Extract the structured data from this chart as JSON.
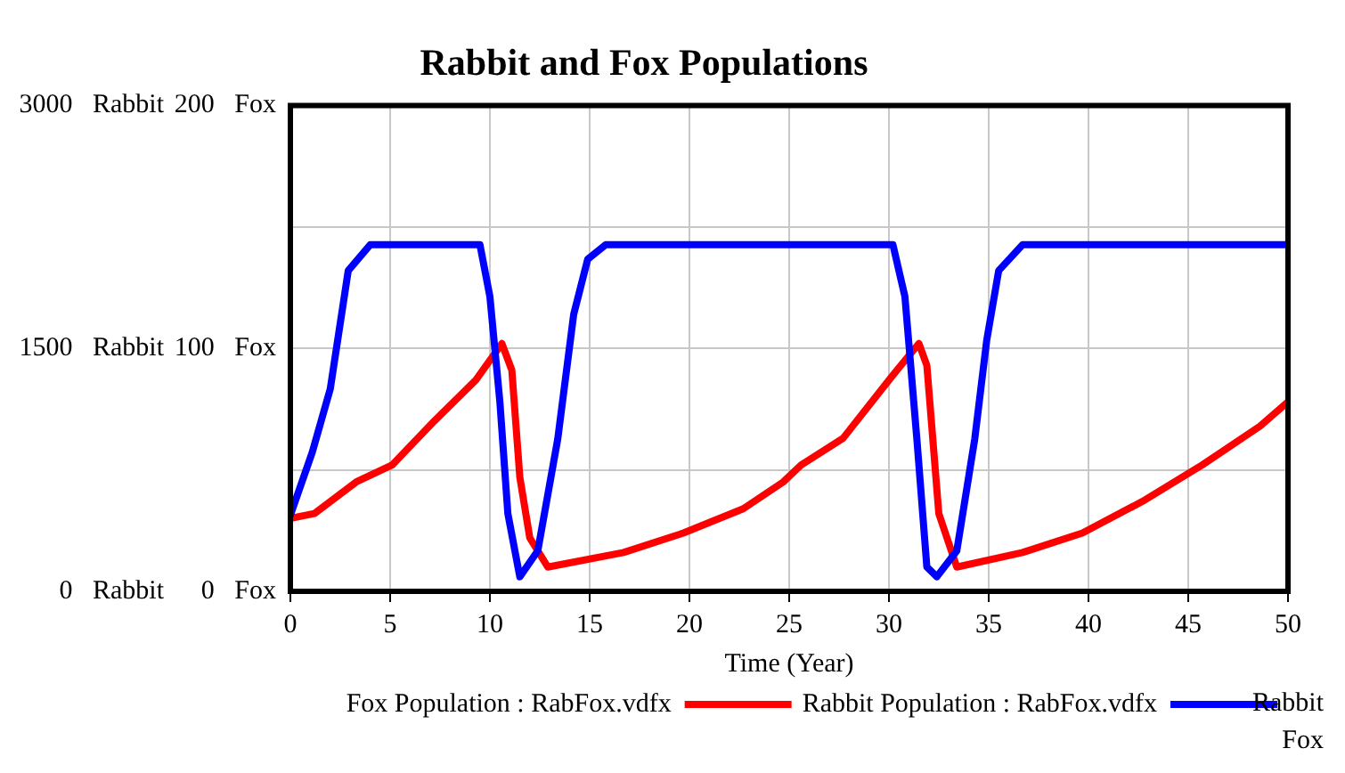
{
  "chart_data": {
    "type": "line",
    "title": "Rabbit and Fox Populations",
    "xlabel": "Time (Year)",
    "xlim": [
      0,
      50
    ],
    "xticks": [
      0,
      5,
      10,
      15,
      20,
      25,
      30,
      35,
      40,
      45,
      50
    ],
    "ylim": [
      0,
      3000
    ],
    "yticks": [
      {
        "value": 0,
        "label": "0 Rabbit"
      },
      {
        "value": 750,
        "label": null
      },
      {
        "value": 1500,
        "label": "1500 Rabbit"
      },
      {
        "value": 2250,
        "label": null
      },
      {
        "value": 3000,
        "label": "3000 Rabbit"
      }
    ],
    "y2lim": [
      0,
      200
    ],
    "y2ticks": [
      {
        "value": 0,
        "label": "0 Fox"
      },
      {
        "value": 100,
        "label": "100 Fox"
      },
      {
        "value": 200,
        "label": "200 Fox"
      }
    ],
    "grid": true,
    "legend": "bottom",
    "marker": "none",
    "line_style": "solid",
    "annotations": [
      "Rabbit",
      "Fox"
    ],
    "series": [
      {
        "name": "Rabbit Population : RabFox.vdfx",
        "color": "#0000ff",
        "x": [
          0,
          1.1,
          2,
          2.9,
          4,
          9.5,
          10,
          10.5,
          10.9,
          11.5,
          12.4,
          13.4,
          14.2,
          14.9,
          15.8,
          30.2,
          30.8,
          31.4,
          31.9,
          32.4,
          33.4,
          34.3,
          34.9,
          35.5,
          36.7,
          50
        ],
        "values": [
          470,
          860,
          1250,
          1980,
          2140,
          2140,
          1820,
          1170,
          480,
          90,
          250,
          940,
          1710,
          2050,
          2140,
          2140,
          1820,
          940,
          150,
          90,
          250,
          940,
          1550,
          1980,
          2140,
          2140
        ]
      },
      {
        "name": "Fox Population : RabFox.vdfx",
        "color": "#ff0000",
        "axis": "y2",
        "x": [
          0,
          1.2,
          3.3,
          5.1,
          7.2,
          9.3,
          10.6,
          11.1,
          11.5,
          12,
          12.9,
          16.7,
          19.7,
          22.7,
          24.7,
          25.6,
          27.7,
          30.1,
          31.5,
          31.9,
          32.5,
          33.4,
          36.7,
          39.7,
          42.7,
          45.7,
          48.6,
          50
        ],
        "values": [
          30,
          32,
          45,
          52,
          70,
          87,
          102,
          91,
          47,
          22,
          10,
          16,
          24,
          34,
          45,
          52,
          63,
          88,
          102,
          93,
          32,
          10,
          16,
          24,
          37,
          52,
          68,
          78
        ]
      }
    ]
  }
}
